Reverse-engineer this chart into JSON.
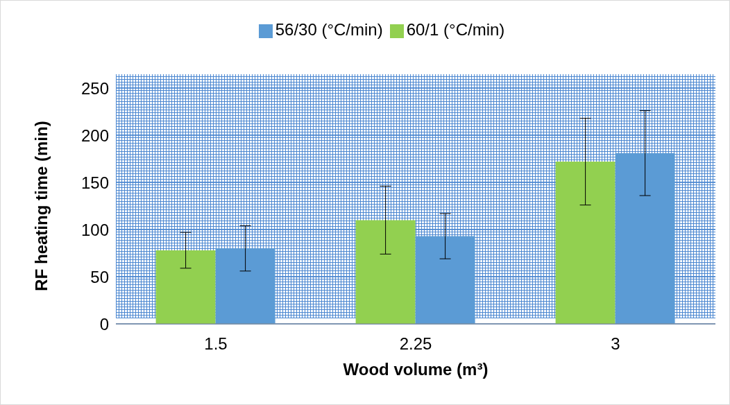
{
  "chart_data": {
    "type": "bar",
    "xlabel": "Wood volume (m³)",
    "ylabel": "RF heating time (min)",
    "categories": [
      "1.5",
      "2.25",
      "3"
    ],
    "series": [
      {
        "name": "60/1 (°C/min)",
        "color": "#92d050",
        "values": [
          78,
          110,
          172
        ],
        "errors": [
          19,
          36,
          46
        ]
      },
      {
        "name": "56/30 (°C/min)",
        "color": "#5b9bd5",
        "values": [
          80,
          93,
          181
        ],
        "errors": [
          24,
          24,
          45
        ]
      }
    ],
    "ylim": [
      0,
      250
    ],
    "yticks": [
      0,
      50,
      100,
      150,
      200,
      250
    ],
    "grid": "y",
    "legend": "top"
  }
}
